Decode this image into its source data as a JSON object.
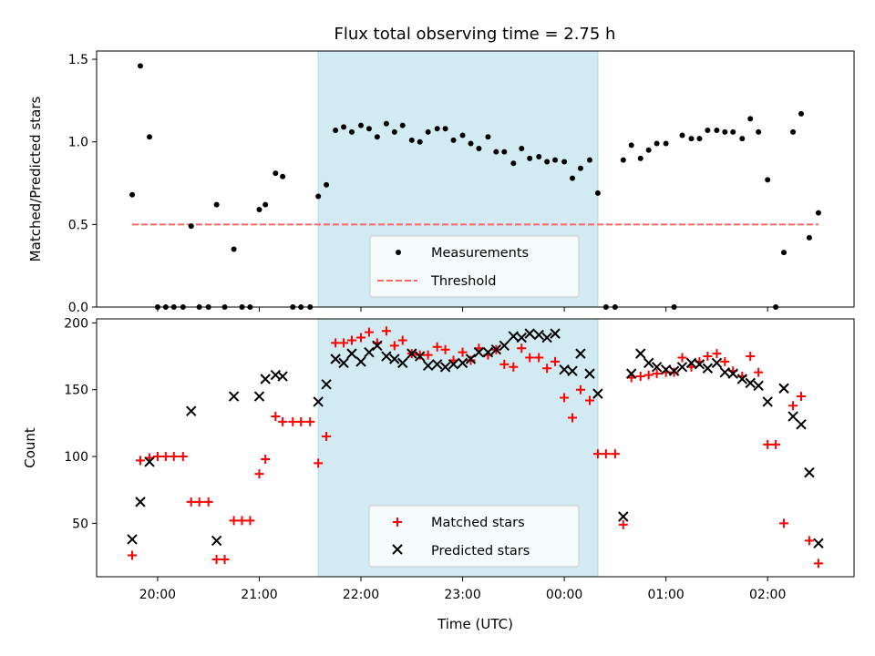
{
  "chart_data": [
    {
      "type": "scatter",
      "title": "Flux total observing time = 2.75 h",
      "xlabel": "",
      "ylabel": "Matched/Predicted stars",
      "xlim": [
        -0.6,
        6.85
      ],
      "ylim": [
        0.0,
        1.55
      ],
      "yticks": [
        0.0,
        0.5,
        1.0,
        1.5
      ],
      "ytick_labels": [
        "0.0",
        "0.5",
        "1.0",
        "1.5"
      ],
      "highlight_span": [
        1.58,
        4.33
      ],
      "highlight_color": "#add8e6",
      "threshold": {
        "name": "Threshold",
        "value": 0.5,
        "x_range": [
          -0.25,
          6.5
        ],
        "color": "#ff6666"
      },
      "legend": {
        "position": "lower center",
        "entries": [
          "Measurements",
          "Threshold"
        ]
      },
      "series": [
        {
          "name": "Measurements",
          "marker": "dot",
          "color": "#000000",
          "x": [
            -0.25,
            -0.17,
            -0.08,
            0.0,
            0.08,
            0.16,
            0.25,
            0.33,
            0.41,
            0.5,
            0.58,
            0.66,
            0.75,
            0.83,
            0.91,
            1.0,
            1.06,
            1.16,
            1.23,
            1.33,
            1.41,
            1.5,
            1.58,
            1.66,
            1.75,
            1.83,
            1.91,
            2.0,
            2.08,
            2.16,
            2.25,
            2.33,
            2.41,
            2.5,
            2.58,
            2.66,
            2.75,
            2.83,
            2.91,
            3.0,
            3.08,
            3.16,
            3.25,
            3.33,
            3.41,
            3.5,
            3.58,
            3.66,
            3.75,
            3.83,
            3.91,
            4.0,
            4.08,
            4.16,
            4.25,
            4.33,
            4.41,
            4.5,
            4.58,
            4.66,
            4.75,
            4.83,
            4.91,
            5.0,
            5.08,
            5.16,
            5.25,
            5.33,
            5.41,
            5.5,
            5.58,
            5.66,
            5.75,
            5.83,
            5.91,
            6.0,
            6.08,
            6.16,
            6.25,
            6.33,
            6.41,
            6.5
          ],
          "y": [
            0.68,
            1.46,
            1.03,
            0.0,
            0.0,
            0.0,
            0.0,
            0.49,
            0.0,
            0.0,
            0.62,
            0.0,
            0.35,
            0.0,
            0.0,
            0.59,
            0.62,
            0.81,
            0.79,
            0.0,
            0.0,
            0.0,
            0.67,
            0.74,
            1.07,
            1.09,
            1.06,
            1.1,
            1.08,
            1.03,
            1.11,
            1.06,
            1.1,
            1.01,
            1.0,
            1.06,
            1.08,
            1.08,
            1.01,
            1.04,
            0.99,
            0.96,
            1.03,
            0.94,
            0.94,
            0.87,
            0.96,
            0.9,
            0.91,
            0.88,
            0.89,
            0.88,
            0.78,
            0.84,
            0.89,
            0.69,
            0.0,
            0.0,
            0.89,
            0.98,
            0.9,
            0.95,
            0.99,
            0.99,
            0.0,
            1.04,
            1.02,
            1.02,
            1.07,
            1.07,
            1.06,
            1.06,
            1.02,
            1.14,
            1.06,
            0.77,
            0.0,
            0.33,
            1.06,
            1.17,
            0.42,
            0.57
          ]
        }
      ]
    },
    {
      "type": "scatter",
      "title": "",
      "xlabel": "Time (UTC)",
      "ylabel": "Count",
      "xlim": [
        -0.6,
        6.85
      ],
      "ylim": [
        10,
        203
      ],
      "yticks": [
        50,
        100,
        150,
        200
      ],
      "ytick_labels": [
        "50",
        "100",
        "150",
        "200"
      ],
      "xticks": [
        0,
        1,
        2,
        3,
        4,
        5,
        6
      ],
      "xtick_labels": [
        "20:00",
        "21:00",
        "22:00",
        "23:00",
        "00:00",
        "01:00",
        "02:00"
      ],
      "highlight_span": [
        1.58,
        4.33
      ],
      "highlight_color": "#add8e6",
      "legend": {
        "position": "lower center",
        "entries": [
          "Matched stars",
          "Predicted stars"
        ]
      },
      "series": [
        {
          "name": "Matched stars",
          "marker": "plus",
          "color": "#ff0000",
          "x": [
            -0.25,
            -0.17,
            -0.08,
            0.0,
            0.08,
            0.16,
            0.25,
            0.33,
            0.41,
            0.5,
            0.58,
            0.66,
            0.75,
            0.83,
            0.91,
            1.0,
            1.06,
            1.16,
            1.23,
            1.33,
            1.41,
            1.5,
            1.58,
            1.66,
            1.75,
            1.83,
            1.91,
            2.0,
            2.08,
            2.16,
            2.25,
            2.33,
            2.41,
            2.5,
            2.58,
            2.66,
            2.75,
            2.83,
            2.91,
            3.0,
            3.08,
            3.16,
            3.25,
            3.33,
            3.41,
            3.5,
            3.58,
            3.66,
            3.75,
            3.83,
            3.91,
            4.0,
            4.08,
            4.16,
            4.25,
            4.33,
            4.41,
            4.5,
            4.58,
            4.66,
            4.75,
            4.83,
            4.91,
            5.0,
            5.08,
            5.16,
            5.25,
            5.33,
            5.41,
            5.5,
            5.58,
            5.66,
            5.75,
            5.83,
            5.91,
            6.0,
            6.08,
            6.16,
            6.25,
            6.33,
            6.41,
            6.5
          ],
          "y": [
            26,
            97,
            99,
            100,
            100,
            100,
            100,
            66,
            66,
            66,
            23,
            23,
            52,
            52,
            52,
            87,
            98,
            130,
            126,
            126,
            126,
            126,
            95,
            115,
            185,
            185,
            187,
            189,
            193,
            185,
            194,
            183,
            187,
            177,
            176,
            176,
            182,
            180,
            172,
            178,
            172,
            181,
            176,
            180,
            169,
            167,
            181,
            174,
            174,
            166,
            171,
            144,
            129,
            150,
            142,
            102,
            102,
            102,
            49,
            159,
            160,
            161,
            162,
            163,
            163,
            174,
            167,
            171,
            175,
            177,
            171,
            164,
            160,
            175,
            163,
            109,
            109,
            50,
            138,
            145,
            37,
            20
          ]
        },
        {
          "name": "Predicted stars",
          "marker": "x",
          "color": "#000000",
          "x": [
            -0.25,
            -0.17,
            -0.08,
            0.33,
            0.58,
            0.75,
            1.0,
            1.06,
            1.16,
            1.23,
            1.58,
            1.66,
            1.75,
            1.83,
            1.91,
            2.0,
            2.08,
            2.16,
            2.25,
            2.33,
            2.41,
            2.5,
            2.58,
            2.66,
            2.75,
            2.83,
            2.91,
            3.0,
            3.08,
            3.16,
            3.25,
            3.33,
            3.41,
            3.5,
            3.58,
            3.66,
            3.75,
            3.83,
            3.91,
            4.0,
            4.08,
            4.16,
            4.25,
            4.33,
            4.58,
            4.66,
            4.75,
            4.83,
            4.91,
            5.0,
            5.08,
            5.16,
            5.25,
            5.33,
            5.41,
            5.5,
            5.58,
            5.66,
            5.75,
            5.83,
            5.91,
            6.0,
            6.16,
            6.25,
            6.33,
            6.41,
            6.5
          ],
          "y": [
            38,
            66,
            96,
            134,
            37,
            145,
            145,
            158,
            161,
            160,
            141,
            154,
            173,
            170,
            177,
            171,
            178,
            183,
            175,
            173,
            170,
            177,
            175,
            168,
            169,
            167,
            169,
            170,
            173,
            178,
            178,
            180,
            183,
            190,
            189,
            192,
            191,
            189,
            192,
            165,
            164,
            177,
            162,
            147,
            55,
            162,
            177,
            170,
            167,
            165,
            164,
            167,
            170,
            169,
            166,
            170,
            163,
            162,
            158,
            155,
            153,
            141,
            151,
            130,
            124,
            88,
            35
          ]
        }
      ]
    }
  ]
}
